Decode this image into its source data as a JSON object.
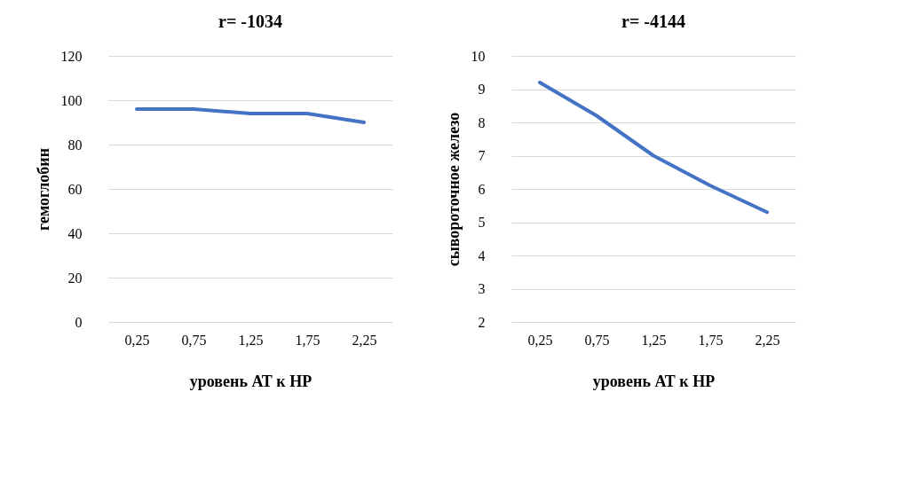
{
  "chart_data": [
    {
      "type": "line",
      "title": "r= -1034",
      "xlabel": "уровень АТ к HP",
      "ylabel": "гемоглобин",
      "categories": [
        "0,25",
        "0,75",
        "1,25",
        "1,75",
        "2,25"
      ],
      "series": [
        {
          "color": "#4472c4",
          "values": [
            96,
            96,
            94,
            94,
            90
          ]
        }
      ],
      "ylim": [
        0,
        120
      ],
      "yticks": [
        0,
        20,
        40,
        60,
        80,
        100,
        120
      ],
      "grid": "y",
      "line_style": "solid"
    },
    {
      "type": "line",
      "title": "r= -4144",
      "xlabel": "уровень АТ к HP",
      "ylabel": "сывороточное железо",
      "categories": [
        "0,25",
        "0,75",
        "1,25",
        "1,75",
        "2,25"
      ],
      "series": [
        {
          "color": "#4472c4",
          "values": [
            9.2,
            8.2,
            7.0,
            6.1,
            5.3
          ]
        }
      ],
      "ylim": [
        2,
        10
      ],
      "yticks": [
        2,
        3,
        4,
        5,
        6,
        7,
        8,
        9,
        10
      ],
      "grid": "y",
      "line_style": "solid"
    }
  ]
}
